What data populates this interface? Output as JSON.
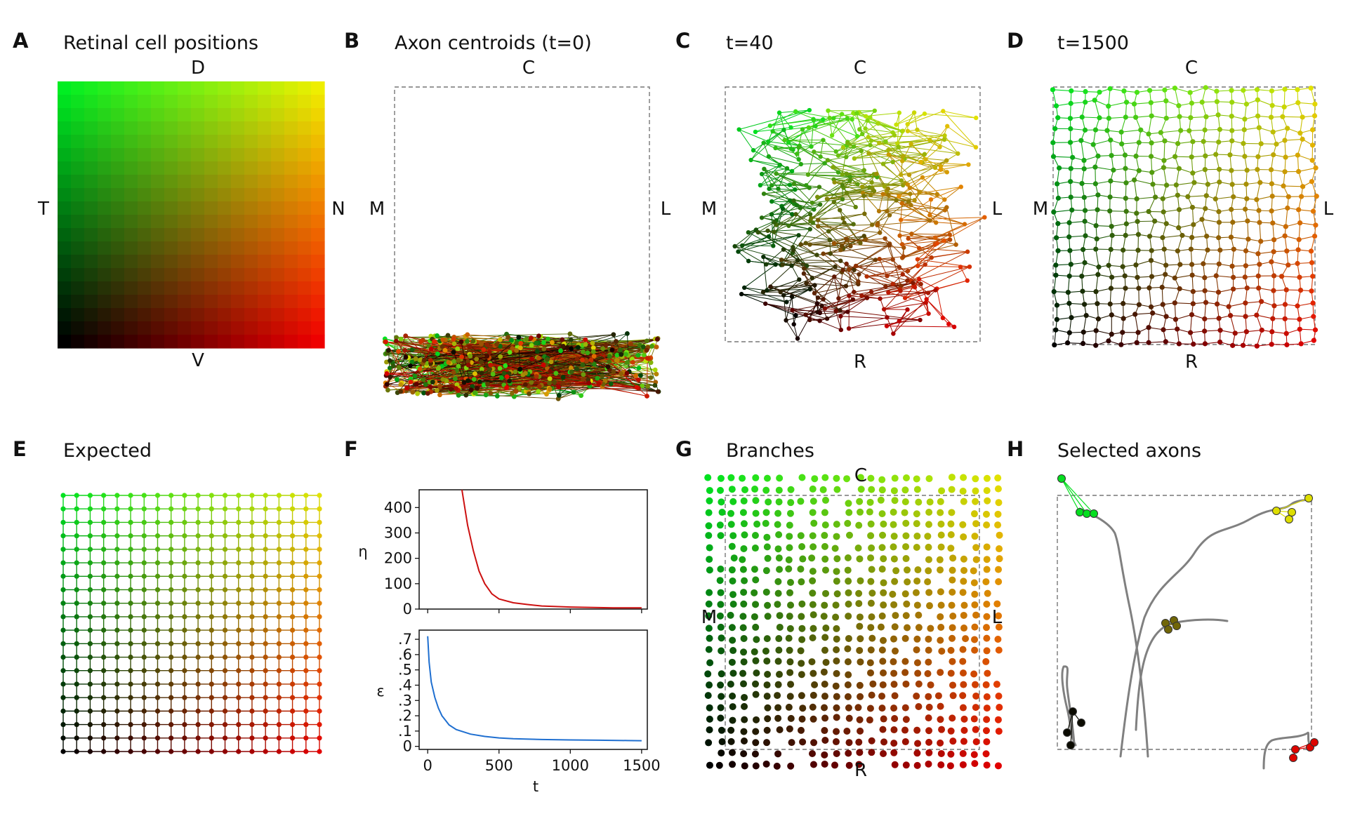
{
  "panels": {
    "A": {
      "letter": "A",
      "title": "Retinal cell positions",
      "top": "D",
      "bottom": "V",
      "left": "T",
      "right": "N"
    },
    "B": {
      "letter": "B",
      "title": "Axon centroids (t=0)",
      "top": "C",
      "left": "M",
      "right": "L"
    },
    "C": {
      "letter": "C",
      "title": "t=40",
      "top": "C",
      "bottom": "R",
      "left": "M",
      "right": "L"
    },
    "D": {
      "letter": "D",
      "title": "t=1500",
      "top": "C",
      "bottom": "R",
      "left": "M",
      "right": "L"
    },
    "E": {
      "letter": "E",
      "title": "Expected"
    },
    "F": {
      "letter": "F"
    },
    "G": {
      "letter": "G",
      "title": "Branches",
      "top": "C",
      "bottom": "R",
      "left": "M",
      "right": "L"
    },
    "H": {
      "letter": "H",
      "title": "Selected axons"
    }
  },
  "colors": {
    "corner_top_left": "#00ee22",
    "corner_top_right": "#eeee00",
    "corner_bottom_left": "#000000",
    "corner_bottom_right": "#ee0000",
    "eta_line": "#cc1111",
    "epsilon_line": "#1f6fd0",
    "frame": "#777777",
    "axon_path": "#808080"
  },
  "chart_data": [
    {
      "type": "line",
      "ylabel": "η",
      "xlabel": "",
      "ylim": [
        0,
        470
      ],
      "xlim": [
        -60,
        1540
      ],
      "yticks": [
        "0",
        "100",
        "200",
        "300",
        "400"
      ],
      "series": [
        {
          "x": [
            240,
            280,
            320,
            360,
            400,
            450,
            500,
            600,
            700,
            800,
            900,
            1000,
            1100,
            1200,
            1300,
            1400,
            1500
          ],
          "values": [
            470,
            330,
            230,
            150,
            100,
            60,
            40,
            25,
            18,
            12,
            10,
            8,
            7,
            6,
            5,
            5,
            5
          ]
        }
      ]
    },
    {
      "type": "line",
      "ylabel": "ε",
      "xlabel": "t",
      "ylim": [
        -0.02,
        0.76
      ],
      "xlim": [
        -60,
        1540
      ],
      "yticks": [
        "0",
        ".1",
        ".2",
        ".3",
        ".4",
        ".5",
        ".6",
        ".7"
      ],
      "xticks": [
        "0",
        "500",
        "1000",
        "1500"
      ],
      "series": [
        {
          "x": [
            0,
            10,
            25,
            50,
            75,
            100,
            150,
            200,
            300,
            400,
            500,
            600,
            800,
            1000,
            1200,
            1400,
            1500
          ],
          "values": [
            0.72,
            0.55,
            0.42,
            0.32,
            0.25,
            0.2,
            0.14,
            0.11,
            0.08,
            0.065,
            0.055,
            0.05,
            0.045,
            0.042,
            0.04,
            0.038,
            0.037
          ]
        }
      ]
    }
  ]
}
